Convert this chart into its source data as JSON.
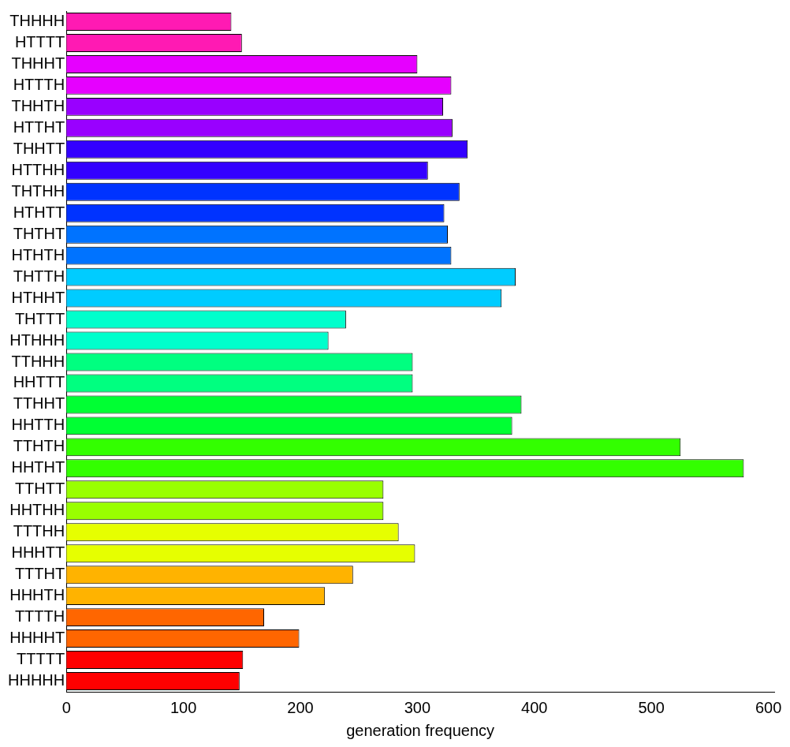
{
  "chart_data": {
    "type": "bar",
    "orientation": "horizontal",
    "xlabel": "generation frequency",
    "categories": [
      "THHHH",
      "HTTTT",
      "THHHT",
      "HTTTH",
      "THHTH",
      "HTTHT",
      "THHTT",
      "HTTHH",
      "THTHH",
      "HTHTT",
      "THTHT",
      "HTHTH",
      "THTTH",
      "HTHHT",
      "THTTT",
      "HTHHH",
      "TTHHH",
      "HHTTT",
      "TTHHT",
      "HHTTH",
      "TTHTH",
      "HHTHT",
      "TTHTT",
      "HHTHH",
      "TTTHH",
      "HHHTT",
      "TTTHT",
      "HHHTH",
      "TTTTH",
      "HHHHT",
      "TTTTT",
      "HHHHH"
    ],
    "values": [
      141,
      150,
      300,
      329,
      322,
      330,
      343,
      309,
      336,
      323,
      326,
      329,
      384,
      372,
      239,
      224,
      296,
      296,
      389,
      381,
      525,
      579,
      271,
      271,
      284,
      298,
      245,
      221,
      169,
      199,
      151,
      148
    ],
    "colors": [
      "#ff1ab3",
      "#ff1ab3",
      "#e600ff",
      "#e600ff",
      "#9900ff",
      "#9900ff",
      "#3300ff",
      "#3300ff",
      "#0033ff",
      "#0033ff",
      "#0073ff",
      "#0073ff",
      "#00ccff",
      "#00ccff",
      "#00ffcc",
      "#00ffcc",
      "#00ff80",
      "#00ff80",
      "#00ff33",
      "#00ff33",
      "#33ff00",
      "#33ff00",
      "#99ff00",
      "#99ff00",
      "#e6ff00",
      "#e6ff00",
      "#ffb300",
      "#ffb300",
      "#ff6600",
      "#ff6600",
      "#ff0000",
      "#ff0000"
    ],
    "xlim": [
      0,
      605
    ],
    "xticks": [
      0,
      100,
      200,
      300,
      400,
      500,
      600
    ],
    "grid": false,
    "legend": false
  }
}
